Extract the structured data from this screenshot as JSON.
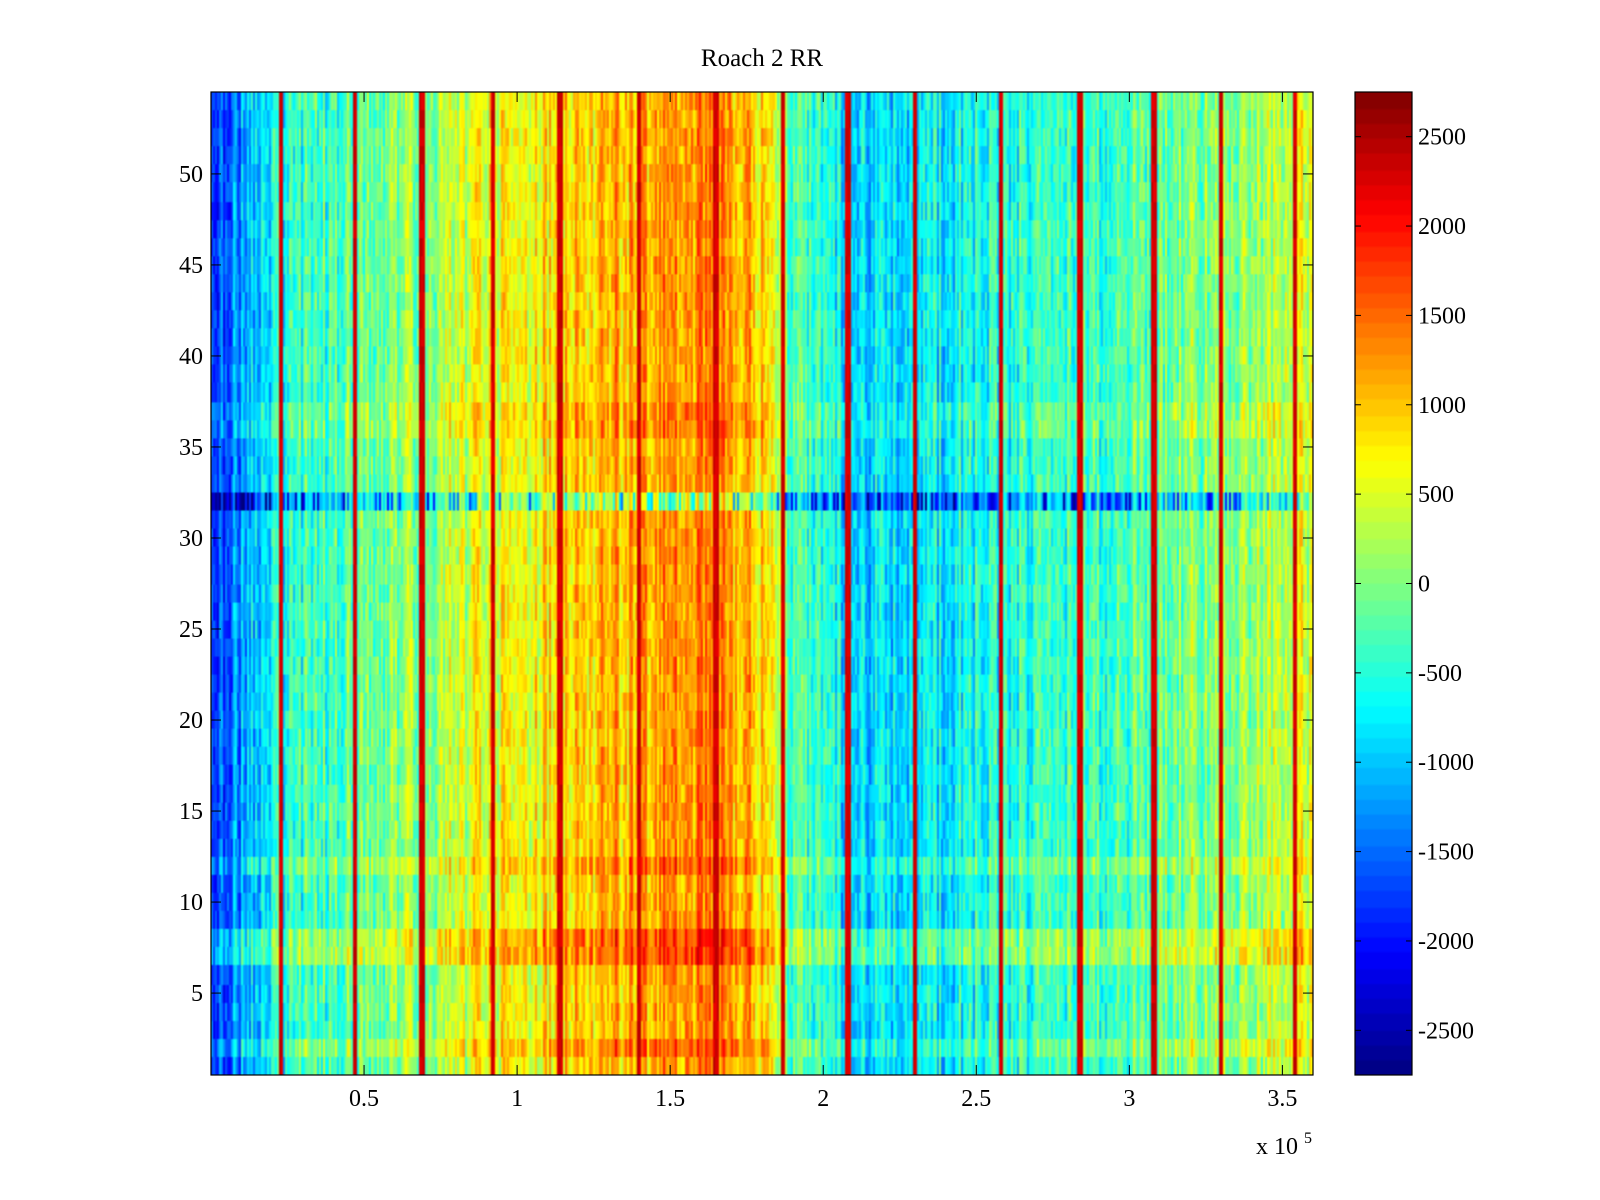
{
  "chart_data": {
    "type": "heatmap",
    "title": "Roach 2 RR",
    "xlabel": "",
    "ylabel": "",
    "x_exponent_label": "x 10",
    "x_exponent_power": "5",
    "xlim": [
      0,
      3.6
    ],
    "ylim": [
      0.5,
      54.5
    ],
    "x_ticks": [
      {
        "value": 0.5,
        "label": "0.5"
      },
      {
        "value": 1,
        "label": "1"
      },
      {
        "value": 1.5,
        "label": "1.5"
      },
      {
        "value": 2,
        "label": "2"
      },
      {
        "value": 2.5,
        "label": "2.5"
      },
      {
        "value": 3,
        "label": "3"
      },
      {
        "value": 3.5,
        "label": "3.5"
      }
    ],
    "y_ticks": [
      {
        "value": 5,
        "label": "5"
      },
      {
        "value": 10,
        "label": "10"
      },
      {
        "value": 15,
        "label": "15"
      },
      {
        "value": 20,
        "label": "20"
      },
      {
        "value": 25,
        "label": "25"
      },
      {
        "value": 30,
        "label": "30"
      },
      {
        "value": 35,
        "label": "35"
      },
      {
        "value": 40,
        "label": "40"
      },
      {
        "value": 45,
        "label": "45"
      },
      {
        "value": 50,
        "label": "50"
      }
    ],
    "colorbar": {
      "colormap": "jet",
      "clim": [
        -2750,
        2750
      ],
      "ticks": [
        {
          "value": 2500,
          "label": "2500"
        },
        {
          "value": 2000,
          "label": "2000"
        },
        {
          "value": 1500,
          "label": "1500"
        },
        {
          "value": 1000,
          "label": "1000"
        },
        {
          "value": 500,
          "label": "500"
        },
        {
          "value": 0,
          "label": "0"
        },
        {
          "value": -500,
          "label": "-500"
        },
        {
          "value": -1000,
          "label": "-1000"
        },
        {
          "value": -1500,
          "label": "-1500"
        },
        {
          "value": -2000,
          "label": "-2000"
        },
        {
          "value": -2500,
          "label": "-2500"
        }
      ]
    },
    "rows": 54,
    "column_profile_x": [
      0,
      0.1,
      0.25,
      0.5,
      0.75,
      1.0,
      1.25,
      1.5,
      1.65,
      1.8,
      1.9,
      2.1,
      2.3,
      2.5,
      2.75,
      3.0,
      3.2,
      3.4,
      3.6
    ],
    "column_profile_value": [
      -1800,
      -1200,
      -500,
      -100,
      250,
      700,
      1000,
      1250,
      1450,
      900,
      -300,
      -900,
      -800,
      -600,
      -400,
      -300,
      0,
      200,
      500
    ],
    "row_offsets": [
      {
        "row": 2,
        "value": 300
      },
      {
        "row": 7,
        "value": 500
      },
      {
        "row": 8,
        "value": 500
      },
      {
        "row": 12,
        "value": 300
      },
      {
        "row": 32,
        "value": -600
      },
      {
        "row": 36,
        "value": 200
      },
      {
        "row": 37,
        "value": 200
      }
    ],
    "stripes_x": [
      0.23,
      0.47,
      0.69,
      0.92,
      1.14,
      1.4,
      1.65,
      1.87,
      2.08,
      2.3,
      2.58,
      2.84,
      3.08,
      3.3,
      3.54
    ],
    "stripe_value": 2300
  }
}
